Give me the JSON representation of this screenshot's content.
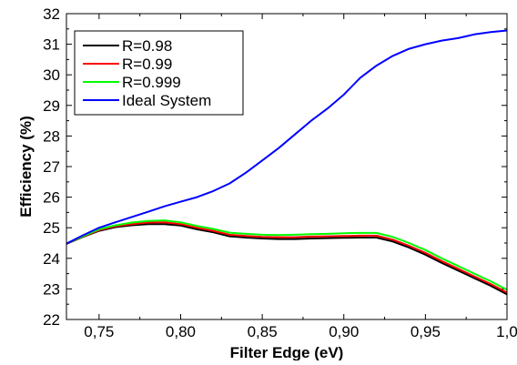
{
  "chart_data": {
    "type": "line",
    "title": "",
    "xlabel": "Filter Edge (eV)",
    "ylabel": "Efficiency (%)",
    "xlim": [
      0.73,
      1.0
    ],
    "ylim": [
      22,
      32
    ],
    "grid": false,
    "legend_position": "top-left",
    "x_ticks": [
      0.75,
      0.8,
      0.85,
      0.9,
      0.95,
      1.0
    ],
    "x_tick_labels": [
      "0,75",
      "0,80",
      "0,85",
      "0,90",
      "0,95",
      "1,0"
    ],
    "y_ticks": [
      22,
      23,
      24,
      25,
      26,
      27,
      28,
      29,
      30,
      31,
      32
    ],
    "y_tick_labels": [
      "22",
      "23",
      "24",
      "25",
      "26",
      "27",
      "28",
      "29",
      "30",
      "31",
      "32"
    ],
    "x": [
      0.73,
      0.74,
      0.75,
      0.76,
      0.77,
      0.78,
      0.79,
      0.8,
      0.81,
      0.82,
      0.83,
      0.84,
      0.85,
      0.86,
      0.87,
      0.88,
      0.89,
      0.9,
      0.91,
      0.92,
      0.93,
      0.94,
      0.95,
      0.96,
      0.97,
      0.98,
      0.99,
      1.0
    ],
    "series": [
      {
        "name": "R=0.98",
        "color": "#000000",
        "values": [
          24.47,
          24.7,
          24.9,
          25.02,
          25.08,
          25.12,
          25.12,
          25.07,
          24.95,
          24.85,
          24.72,
          24.68,
          24.65,
          24.63,
          24.63,
          24.65,
          24.66,
          24.67,
          24.68,
          24.68,
          24.55,
          24.35,
          24.12,
          23.85,
          23.6,
          23.35,
          23.1,
          22.82
        ]
      },
      {
        "name": "R=0.99",
        "color": "#ff0000",
        "values": [
          24.47,
          24.71,
          24.92,
          25.05,
          25.12,
          25.17,
          25.18,
          25.12,
          25.0,
          24.9,
          24.77,
          24.73,
          24.7,
          24.69,
          24.69,
          24.71,
          24.72,
          24.73,
          24.74,
          24.74,
          24.61,
          24.41,
          24.18,
          23.91,
          23.66,
          23.41,
          23.16,
          22.88
        ]
      },
      {
        "name": "R=0.999",
        "color": "#00ff00",
        "values": [
          24.48,
          24.72,
          24.95,
          25.08,
          25.17,
          25.22,
          25.24,
          25.18,
          25.06,
          24.96,
          24.84,
          24.8,
          24.77,
          24.76,
          24.77,
          24.79,
          24.8,
          24.82,
          24.83,
          24.83,
          24.7,
          24.5,
          24.27,
          24.0,
          23.75,
          23.5,
          23.25,
          22.97
        ]
      },
      {
        "name": "Ideal System",
        "color": "#0000ff",
        "values": [
          24.48,
          24.75,
          25.0,
          25.18,
          25.35,
          25.52,
          25.7,
          25.85,
          26.0,
          26.2,
          26.45,
          26.8,
          27.2,
          27.6,
          28.05,
          28.5,
          28.9,
          29.35,
          29.9,
          30.3,
          30.62,
          30.85,
          31.0,
          31.12,
          31.2,
          31.32,
          31.4,
          31.45
        ]
      }
    ]
  }
}
